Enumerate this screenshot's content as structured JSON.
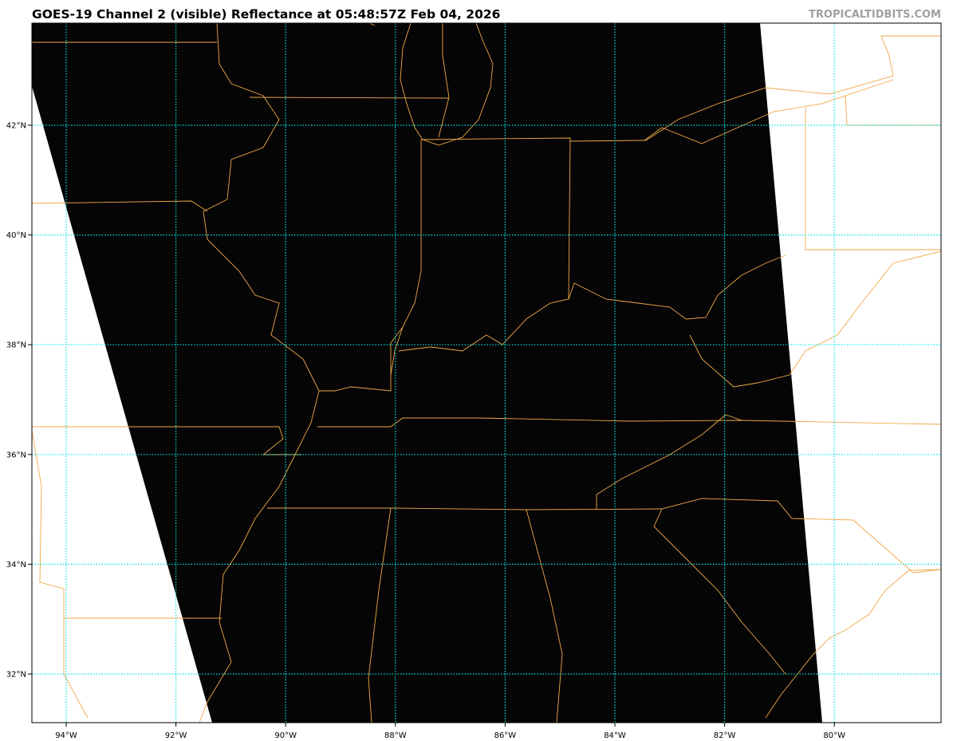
{
  "header": {
    "title": "GOES-19 Channel 2 (visible) Reflectance at 05:48:57Z Feb 04, 2026",
    "brand": "TROPICALTIDBITS.COM"
  },
  "map": {
    "lon_ticks": [
      "94°W",
      "92°W",
      "90°W",
      "88°W",
      "86°W",
      "84°W",
      "82°W",
      "80°W"
    ],
    "lat_ticks": [
      "42°N",
      "40°N",
      "38°N",
      "36°N",
      "34°N",
      "32°N"
    ],
    "lon_values": [
      -94,
      -92,
      -90,
      -88,
      -86,
      -84,
      -82,
      -80
    ],
    "lat_values": [
      42,
      40,
      38,
      36,
      34,
      32
    ],
    "colors": {
      "imagery": "#050505",
      "boundaries": "#f0a848",
      "gridlines": "#00e5e5",
      "no_data": "#ffffff"
    }
  }
}
